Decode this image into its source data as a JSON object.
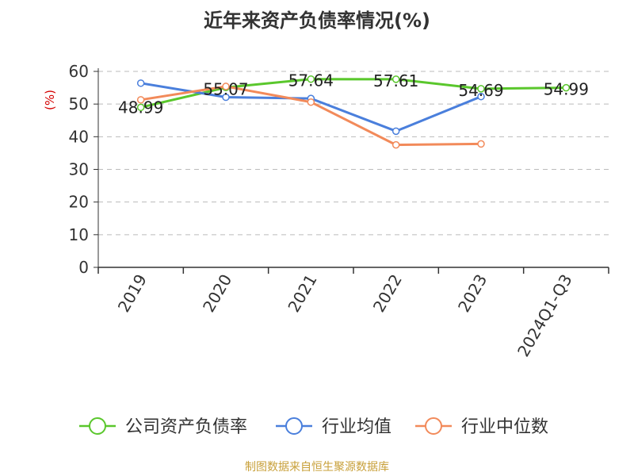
{
  "title": "近年来资产负债率情况(%)",
  "source": "制图数据来自恒生聚源数据库",
  "chart_data": {
    "type": "line",
    "title": "近年来资产负债率情况(%)",
    "ylabel": "(%)",
    "xlabel": "",
    "categories": [
      "2019",
      "2020",
      "2021",
      "2022",
      "2023",
      "2024Q1-Q3"
    ],
    "ylim": [
      0,
      60
    ],
    "yticks": [
      0,
      10,
      20,
      30,
      40,
      50,
      60
    ],
    "grid": "horizontal dashed",
    "legend_position": "bottom",
    "series": [
      {
        "name": "公司资产负债率",
        "color": "#5ac72c",
        "values": [
          48.99,
          55.07,
          57.64,
          57.61,
          54.69,
          54.99
        ],
        "labels": [
          "48.99",
          "55.07",
          "57.64",
          "57.61",
          "54.69",
          "54.99"
        ]
      },
      {
        "name": "行业均值",
        "color": "#4a7fdc",
        "values": [
          56.4,
          52.1,
          51.7,
          41.7,
          52.3,
          null
        ],
        "labels": []
      },
      {
        "name": "行业中位数",
        "color": "#f28a5a",
        "values": [
          51.3,
          55.4,
          50.6,
          37.5,
          37.8,
          null
        ],
        "labels": []
      }
    ]
  }
}
